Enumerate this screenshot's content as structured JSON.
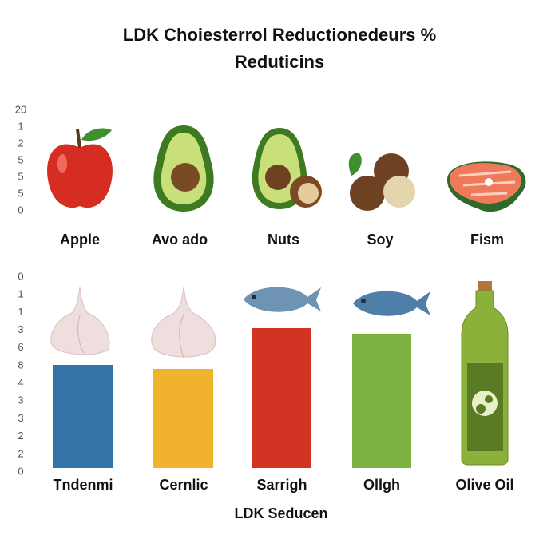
{
  "title": "LDK Choiesterrol Reductionedeurs %",
  "subtitle": "Reduticins",
  "top_panel": {
    "axis_labels": [
      "20",
      "1",
      "2",
      "5",
      "5",
      "5",
      "0"
    ],
    "items": [
      "Apple",
      "Avo ado",
      "Nuts",
      "Soy",
      "Fism"
    ]
  },
  "bottom_panel": {
    "axis_labels": [
      "0",
      "1",
      "1",
      "3",
      "6",
      "8",
      "4",
      "3",
      "3",
      "2",
      "2",
      "0"
    ],
    "items": [
      "Tndenmi",
      "Cernlic",
      "Sarrigh",
      "Ollgh",
      "Olive Oil"
    ],
    "axis_title": "LDK Seducen"
  }
}
